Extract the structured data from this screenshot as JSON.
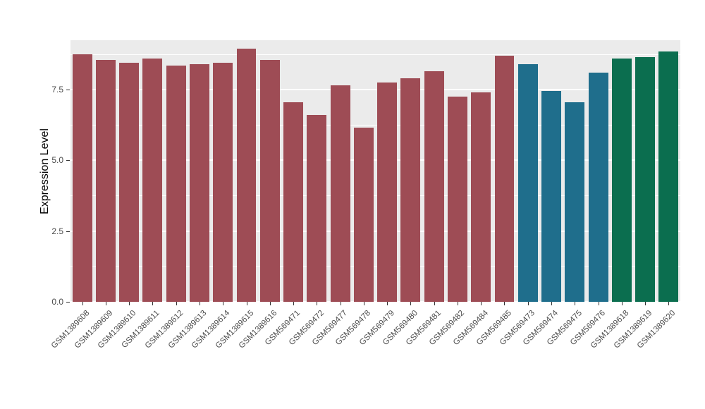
{
  "chart_data": {
    "type": "bar",
    "title": "",
    "xlabel": "",
    "ylabel": "Expression Level",
    "ylim": [
      0,
      9.25
    ],
    "yticks": [
      0.0,
      2.5,
      5.0,
      7.5
    ],
    "ytick_labels": [
      "0.0",
      "2.5",
      "5.0",
      "7.5"
    ],
    "minor_gridlines": [
      1.25,
      3.75,
      6.25,
      8.75
    ],
    "grid": "on",
    "legend_position": "none",
    "panel_bg": "#EBEBEB",
    "grid_color": "#FFFFFF",
    "categories": [
      "GSM1389608",
      "GSM1389609",
      "GSM1389610",
      "GSM1389611",
      "GSM1389612",
      "GSM1389613",
      "GSM1389614",
      "GSM1389615",
      "GSM1389616",
      "GSM569471",
      "GSM569472",
      "GSM569477",
      "GSM569478",
      "GSM569479",
      "GSM569480",
      "GSM569481",
      "GSM569482",
      "GSM569484",
      "GSM569485",
      "GSM569473",
      "GSM569474",
      "GSM569475",
      "GSM569476",
      "GSM1389618",
      "GSM1389619",
      "GSM1389620"
    ],
    "values": [
      8.75,
      8.55,
      8.45,
      8.6,
      8.35,
      8.4,
      8.45,
      8.95,
      8.55,
      7.05,
      6.6,
      7.65,
      6.15,
      7.75,
      7.9,
      8.15,
      7.25,
      7.4,
      8.7,
      8.4,
      7.45,
      7.05,
      8.1,
      8.6,
      8.65,
      8.85
    ],
    "groups": [
      "red",
      "red",
      "red",
      "red",
      "red",
      "red",
      "red",
      "red",
      "red",
      "red",
      "red",
      "red",
      "red",
      "red",
      "red",
      "red",
      "red",
      "red",
      "red",
      "blue",
      "blue",
      "blue",
      "blue",
      "green",
      "green",
      "green"
    ],
    "group_colors": {
      "red": "#9E4C55",
      "blue": "#1F6E8C",
      "green": "#0B6E4F"
    }
  }
}
